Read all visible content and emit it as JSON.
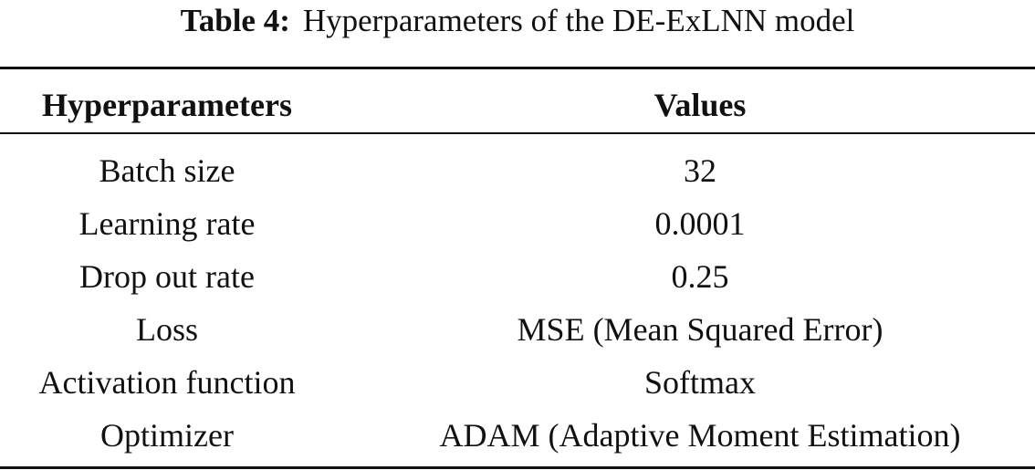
{
  "caption": {
    "label": "Table 4:",
    "text": "Hyperparameters of the DE-ExLNN model"
  },
  "table": {
    "headers": [
      "Hyperparameters",
      "Values"
    ],
    "rows": [
      [
        "Batch size",
        "32"
      ],
      [
        "Learning rate",
        "0.0001"
      ],
      [
        "Drop out rate",
        "0.25"
      ],
      [
        "Loss",
        "MSE (Mean Squared Error)"
      ],
      [
        "Activation function",
        "Softmax"
      ],
      [
        "Optimizer",
        "ADAM (Adaptive Moment Estimation)"
      ]
    ]
  }
}
